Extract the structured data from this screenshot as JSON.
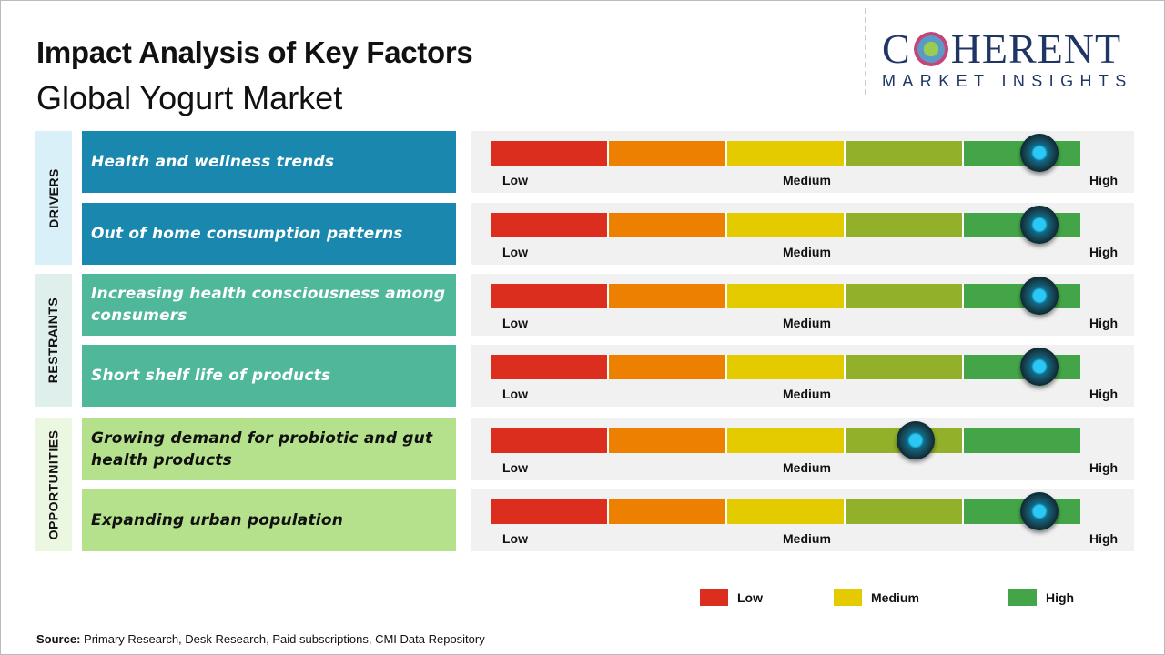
{
  "header": {
    "title": "Impact Analysis of Key Factors",
    "subtitle": "Global Yogurt Market"
  },
  "logo": {
    "main": "COHERENT",
    "sub": "MARKET INSIGHTS"
  },
  "colors": {
    "low": "#dc2e1e",
    "low_mid": "#ed8000",
    "medium": "#e4cb00",
    "mid_high": "#92b02a",
    "high": "#44a548",
    "drivers": "#1a88ae",
    "restraints": "#4fb79a",
    "opportunities": "#b5e18c"
  },
  "scale_labels": {
    "low": "Low",
    "medium": "Medium",
    "high": "High"
  },
  "chart_data": {
    "type": "gauge",
    "scale": [
      "Low",
      "Medium",
      "High"
    ],
    "categories": [
      {
        "name": "DRIVERS",
        "factors": [
          {
            "label": "Health and wellness trends",
            "impact": 0.93
          },
          {
            "label": "Out of home consumption patterns",
            "impact": 0.93
          }
        ]
      },
      {
        "name": "RESTRAINTS",
        "factors": [
          {
            "label": "Increasing health consciousness among consumers",
            "impact": 0.93
          },
          {
            "label": "Short shelf life of products",
            "impact": 0.93
          }
        ]
      },
      {
        "name": "OPPORTUNITIES",
        "factors": [
          {
            "label": "Growing demand for probiotic and gut health products",
            "impact": 0.72
          },
          {
            "label": "Expanding urban population",
            "impact": 0.93
          }
        ]
      }
    ]
  },
  "legend": [
    {
      "label": "Low",
      "color": "#dc2e1e"
    },
    {
      "label": "Medium",
      "color": "#e4cb00"
    },
    {
      "label": "High",
      "color": "#44a548"
    }
  ],
  "source": {
    "prefix": "Source:",
    "text": " Primary Research, Desk Research, Paid subscriptions, CMI Data Repository"
  }
}
